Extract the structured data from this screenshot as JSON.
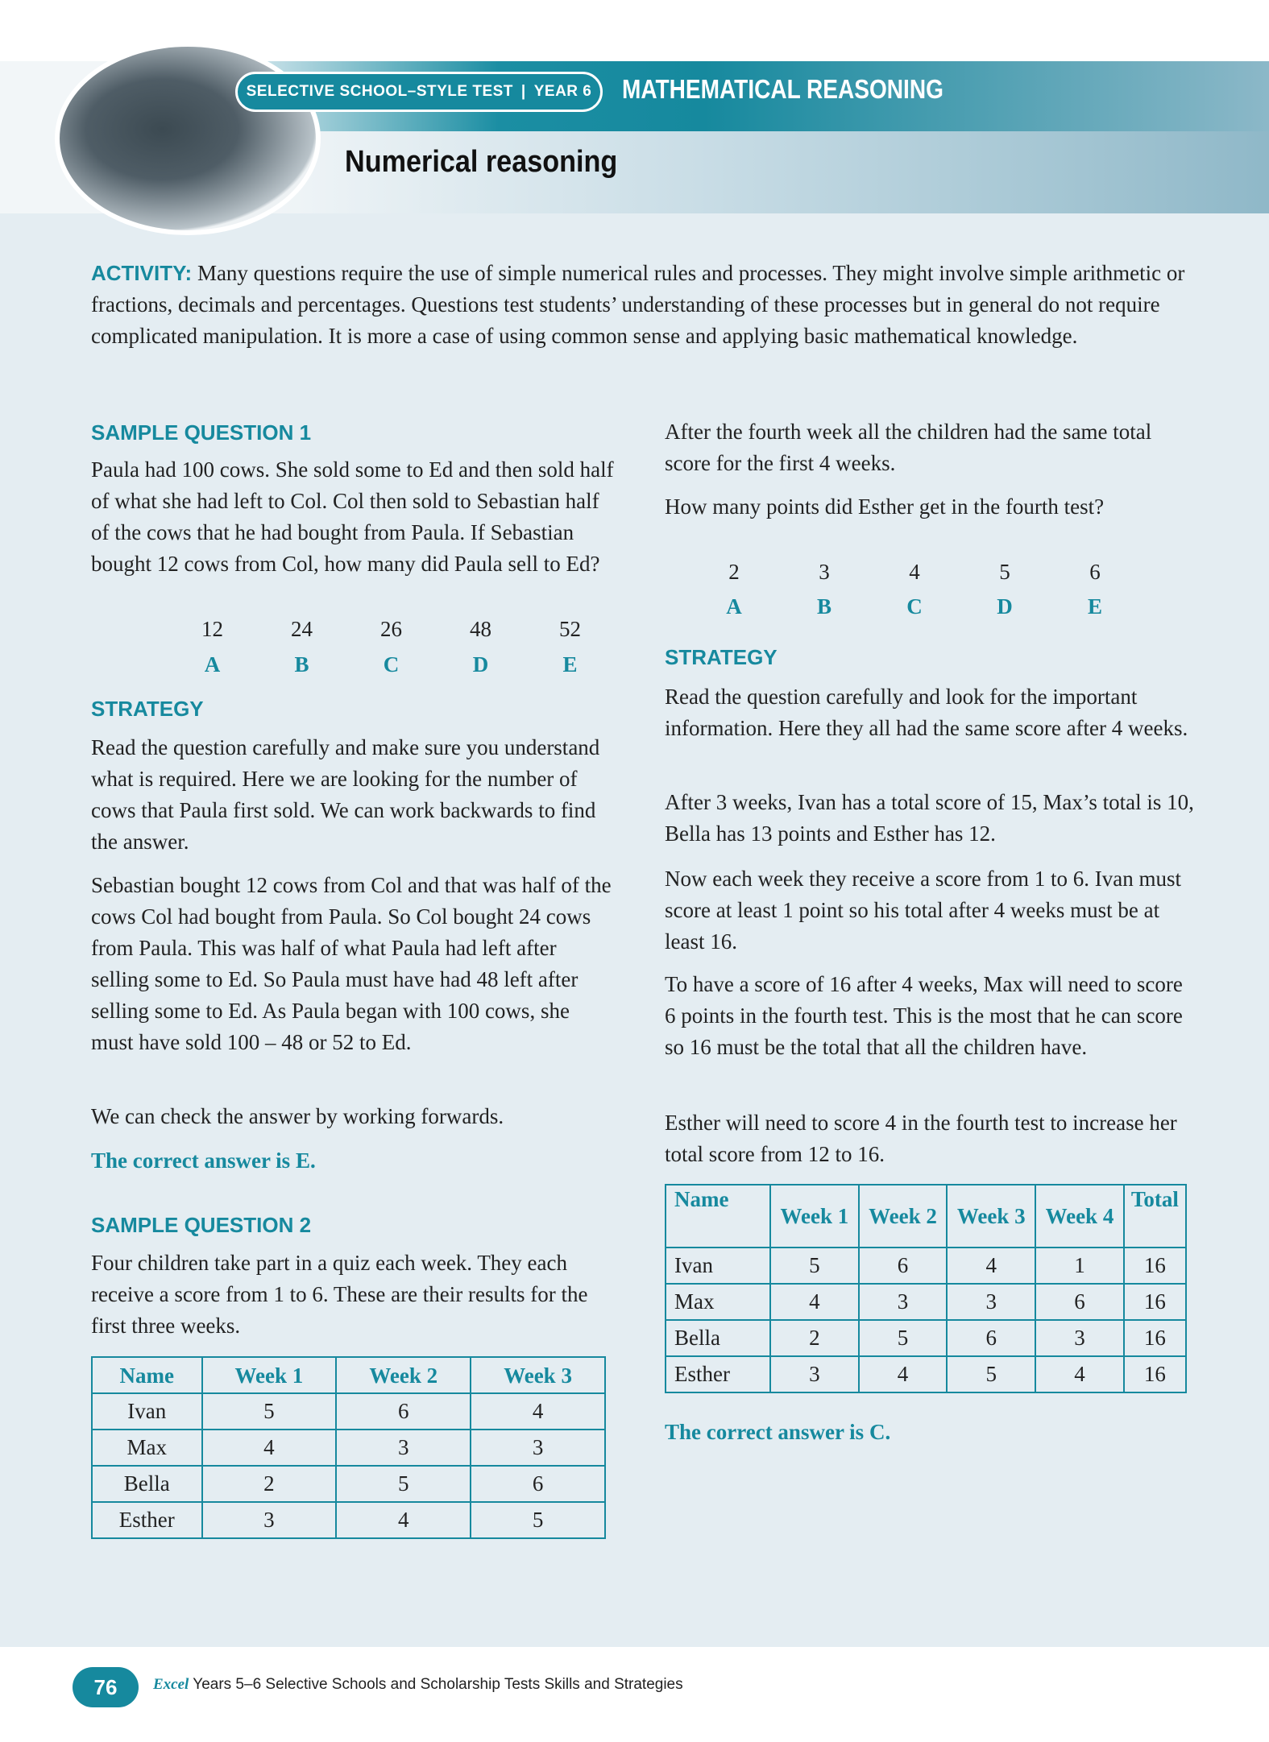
{
  "header": {
    "badge_left": "SELECTIVE SCHOOL–STYLE TEST",
    "badge_sep": "|",
    "badge_right": "YEAR 6",
    "subject": "MATHEMATICAL REASONING",
    "title": "Numerical reasoning"
  },
  "activity": {
    "label": "ACTIVITY:",
    "text": " Many questions require the use of simple numerical rules and processes. They might involve simple arithmetic or fractions, decimals and percentages. Questions test students’ understanding of these processes but in general do not require complicated manipulation. It is more a case of using common sense and applying basic mathematical knowledge."
  },
  "q1": {
    "heading": "SAMPLE QUESTION 1",
    "text": "Paula had 100 cows. She sold some to Ed and then sold half of what she had left to Col. Col then sold to Sebastian half of the cows that he had bought from Paula. If Sebastian bought 12 cows from Col, how many did Paula sell to Ed?",
    "options": [
      "12",
      "24",
      "26",
      "48",
      "52"
    ],
    "letters": [
      "A",
      "B",
      "C",
      "D",
      "E"
    ],
    "strategy_heading": "STRATEGY",
    "strategy": [
      "Read the question carefully and make sure you understand what is required. Here we are looking for the number of cows that Paula first sold. We can work backwards to find the answer.",
      "Sebastian bought 12 cows from Col and that was half of the cows Col had bought from Paula. So Col bought 24 cows from Paula. This was half of what Paula had left after selling some to Ed. So Paula must have had 48 left after selling some to Ed. As Paula began with 100 cows, she must have sold 100 – 48 or 52 to Ed.",
      "We can check the answer by working forwards."
    ],
    "answer": "The correct answer is E."
  },
  "q2": {
    "heading": "SAMPLE QUESTION 2",
    "text": "Four children take part in a quiz each week. They each receive a score from 1 to 6. These are their results for the first three weeks.",
    "table1": {
      "headers": [
        "Name",
        "Week 1",
        "Week 2",
        "Week 3"
      ],
      "rows": [
        [
          "Ivan",
          "5",
          "6",
          "4"
        ],
        [
          "Max",
          "4",
          "3",
          "3"
        ],
        [
          "Bella",
          "2",
          "5",
          "6"
        ],
        [
          "Esther",
          "3",
          "4",
          "5"
        ]
      ]
    },
    "text2": "After the fourth week all the children had the same total score for the first 4 weeks.",
    "question": "How many points did Esther get in the fourth test?",
    "options": [
      "2",
      "3",
      "4",
      "5",
      "6"
    ],
    "letters": [
      "A",
      "B",
      "C",
      "D",
      "E"
    ],
    "strategy_heading": "STRATEGY",
    "strategy": [
      "Read the question carefully and look for the important information. Here they all had the same score after 4 weeks.",
      "After 3 weeks, Ivan has a total score of 15, Max’s total is 10, Bella has 13 points and Esther has 12.",
      "Now each week they receive a score from 1 to 6. Ivan must score at least 1 point so his total after 4 weeks must be at least 16.",
      "To have a score of 16 after 4 weeks, Max will need to score 6 points in the fourth test. This is the most that he can score so 16 must be the total that all the children have.",
      "Esther will need to score 4 in the fourth test to increase her total score from 12 to 16."
    ],
    "table2": {
      "headers": [
        "Name",
        "Week 1",
        "Week 2",
        "Week 3",
        "Week 4",
        "Total"
      ],
      "rows": [
        [
          "Ivan",
          "5",
          "6",
          "4",
          "1",
          "16"
        ],
        [
          "Max",
          "4",
          "3",
          "3",
          "6",
          "16"
        ],
        [
          "Bella",
          "2",
          "5",
          "6",
          "3",
          "16"
        ],
        [
          "Esther",
          "3",
          "4",
          "5",
          "4",
          "16"
        ]
      ]
    },
    "answer": "The correct answer is C."
  },
  "footer": {
    "page": "76",
    "brand": "Excel",
    "text": " Years 5–6 Selective Schools and Scholarship Tests Skills and Strategies"
  }
}
